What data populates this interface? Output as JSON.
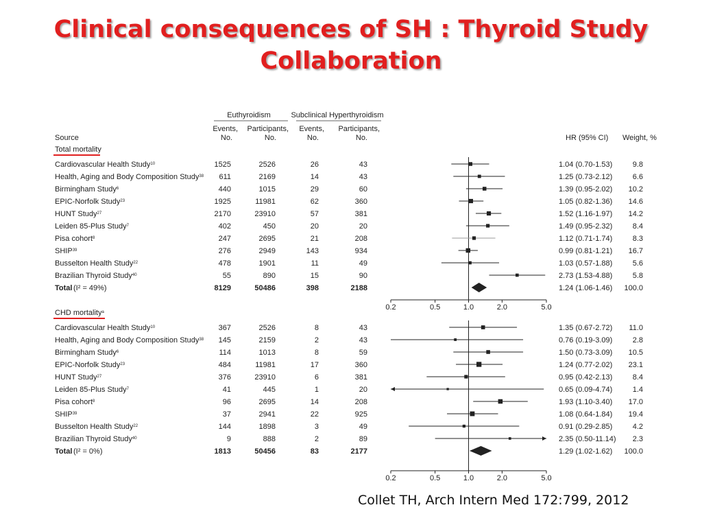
{
  "title": "Clinical consequences of SH : Thyroid Study Collaboration",
  "citation": "Collet TH, Arch Intern Med 172:799, 2012",
  "colors": {
    "title": "#e11f1f",
    "underline": "#e11f1f",
    "text": "#222222",
    "pisa_ci": "#999999"
  },
  "headers": {
    "group_euthyroidism": "Euthyroidism",
    "group_subclinical": "Subclinical Hyperthyroidism",
    "source": "Source",
    "eu_events": [
      "Events,",
      "No."
    ],
    "eu_participants": [
      "Participants,",
      "No."
    ],
    "sh_events": [
      "Events,",
      "No."
    ],
    "sh_participants": [
      "Participants,",
      "No."
    ],
    "hr": "HR (95% CI)",
    "weight": "Weight, %"
  },
  "chart_data": [
    {
      "type": "forest",
      "section_label": "Total mortality",
      "x_scale": "log",
      "xlim": [
        0.2,
        5.0
      ],
      "reference_line": 1.0,
      "ticks": [
        "0.2",
        "0.5",
        "1.0",
        "2.0",
        "5.0"
      ],
      "tick_values": [
        0.2,
        0.5,
        1.0,
        2.0,
        5.0
      ],
      "rows": [
        {
          "source": "Cardiovascular Health Study",
          "ref": "10",
          "eu_events": "1525",
          "eu_participants": "2526",
          "sh_events": "26",
          "sh_participants": "43",
          "hr": 1.04,
          "lo": 0.7,
          "hi": 1.53,
          "hr_text": "1.04 (0.70-1.53)",
          "weight": "9.8"
        },
        {
          "source": "Health, Aging and Body Composition Study",
          "ref": "38",
          "eu_events": "611",
          "eu_participants": "2169",
          "sh_events": "14",
          "sh_participants": "43",
          "hr": 1.25,
          "lo": 0.73,
          "hi": 2.12,
          "hr_text": "1.25 (0.73-2.12)",
          "weight": "6.6"
        },
        {
          "source": "Birmingham Study",
          "ref": "6",
          "eu_events": "440",
          "eu_participants": "1015",
          "sh_events": "29",
          "sh_participants": "60",
          "hr": 1.39,
          "lo": 0.95,
          "hi": 2.02,
          "hr_text": "1.39 (0.95-2.02)",
          "weight": "10.2"
        },
        {
          "source": "EPIC-Norfolk Study",
          "ref": "23",
          "eu_events": "1925",
          "eu_participants": "11981",
          "sh_events": "62",
          "sh_participants": "360",
          "hr": 1.05,
          "lo": 0.82,
          "hi": 1.36,
          "hr_text": "1.05 (0.82-1.36)",
          "weight": "14.6"
        },
        {
          "source": "HUNT Study",
          "ref": "27",
          "eu_events": "2170",
          "eu_participants": "23910",
          "sh_events": "57",
          "sh_participants": "381",
          "hr": 1.52,
          "lo": 1.16,
          "hi": 1.97,
          "hr_text": "1.52 (1.16-1.97)",
          "weight": "14.2"
        },
        {
          "source": "Leiden 85-Plus Study",
          "ref": "7",
          "eu_events": "402",
          "eu_participants": "450",
          "sh_events": "20",
          "sh_participants": "20",
          "hr": 1.49,
          "lo": 0.95,
          "hi": 2.32,
          "hr_text": "1.49 (0.95-2.32)",
          "weight": "8.4"
        },
        {
          "source": "Pisa cohort",
          "ref": "8",
          "eu_events": "247",
          "eu_participants": "2695",
          "sh_events": "21",
          "sh_participants": "208",
          "hr": 1.12,
          "lo": 0.71,
          "hi": 1.74,
          "hr_text": "1.12 (0.71-1.74)",
          "weight": "8.3",
          "gray": true
        },
        {
          "source": "SHIP",
          "ref": "39",
          "eu_events": "276",
          "eu_participants": "2949",
          "sh_events": "143",
          "sh_participants": "934",
          "hr": 0.99,
          "lo": 0.81,
          "hi": 1.21,
          "hr_text": "0.99 (0.81-1.21)",
          "weight": "16.7"
        },
        {
          "source": "Busselton Health Study",
          "ref": "22",
          "eu_events": "478",
          "eu_participants": "1901",
          "sh_events": "11",
          "sh_participants": "49",
          "hr": 1.03,
          "lo": 0.57,
          "hi": 1.88,
          "hr_text": "1.03 (0.57-1.88)",
          "weight": "5.6"
        },
        {
          "source": "Brazilian Thyroid Study",
          "ref": "40",
          "eu_events": "55",
          "eu_participants": "890",
          "sh_events": "15",
          "sh_participants": "90",
          "hr": 2.73,
          "lo": 1.53,
          "hi": 4.88,
          "hr_text": "2.73 (1.53-4.88)",
          "weight": "5.8"
        }
      ],
      "total": {
        "label": "Total",
        "het": "(I² = 49%)",
        "eu_events": "8129",
        "eu_participants": "50486",
        "sh_events": "398",
        "sh_participants": "2188",
        "hr": 1.24,
        "lo": 1.06,
        "hi": 1.46,
        "hr_text": "1.24 (1.06-1.46)",
        "weight": "100.0"
      }
    },
    {
      "type": "forest",
      "section_label": "CHD mortality",
      "section_ref": "a",
      "x_scale": "log",
      "xlim": [
        0.2,
        5.0
      ],
      "reference_line": 1.0,
      "ticks": [
        "0.2",
        "0.5",
        "1.0",
        "2.0",
        "5.0"
      ],
      "tick_values": [
        0.2,
        0.5,
        1.0,
        2.0,
        5.0
      ],
      "rows": [
        {
          "source": "Cardiovascular Health Study",
          "ref": "10",
          "eu_events": "367",
          "eu_participants": "2526",
          "sh_events": "8",
          "sh_participants": "43",
          "hr": 1.35,
          "lo": 0.67,
          "hi": 2.72,
          "hr_text": "1.35 (0.67-2.72)",
          "weight": "11.0"
        },
        {
          "source": "Health, Aging and Body Composition Study",
          "ref": "38",
          "eu_events": "145",
          "eu_participants": "2159",
          "sh_events": "2",
          "sh_participants": "43",
          "hr": 0.76,
          "lo": 0.19,
          "hi": 3.09,
          "hr_text": "0.76 (0.19-3.09)",
          "weight": "2.8"
        },
        {
          "source": "Birmingham Study",
          "ref": "6",
          "eu_events": "114",
          "eu_participants": "1013",
          "sh_events": "8",
          "sh_participants": "59",
          "hr": 1.5,
          "lo": 0.73,
          "hi": 3.09,
          "hr_text": "1.50 (0.73-3.09)",
          "weight": "10.5"
        },
        {
          "source": "EPIC-Norfolk Study",
          "ref": "23",
          "eu_events": "484",
          "eu_participants": "11981",
          "sh_events": "17",
          "sh_participants": "360",
          "hr": 1.24,
          "lo": 0.77,
          "hi": 2.02,
          "hr_text": "1.24 (0.77-2.02)",
          "weight": "23.1"
        },
        {
          "source": "HUNT Study",
          "ref": "27",
          "eu_events": "376",
          "eu_participants": "23910",
          "sh_events": "6",
          "sh_participants": "381",
          "hr": 0.95,
          "lo": 0.42,
          "hi": 2.13,
          "hr_text": "0.95 (0.42-2.13)",
          "weight": "8.4"
        },
        {
          "source": "Leiden 85-Plus Study",
          "ref": "7",
          "eu_events": "41",
          "eu_participants": "445",
          "sh_events": "1",
          "sh_participants": "20",
          "hr": 0.65,
          "lo": 0.09,
          "hi": 4.74,
          "hr_text": "0.65 (0.09-4.74)",
          "weight": "1.4",
          "arrow_left": true
        },
        {
          "source": "Pisa cohort",
          "ref": "8",
          "eu_events": "96",
          "eu_participants": "2695",
          "sh_events": "14",
          "sh_participants": "208",
          "hr": 1.93,
          "lo": 1.1,
          "hi": 3.4,
          "hr_text": "1.93 (1.10-3.40)",
          "weight": "17.0"
        },
        {
          "source": "SHIP",
          "ref": "39",
          "eu_events": "37",
          "eu_participants": "2941",
          "sh_events": "22",
          "sh_participants": "925",
          "hr": 1.08,
          "lo": 0.64,
          "hi": 1.84,
          "hr_text": "1.08 (0.64-1.84)",
          "weight": "19.4"
        },
        {
          "source": "Busselton Health Study",
          "ref": "22",
          "eu_events": "144",
          "eu_participants": "1898",
          "sh_events": "3",
          "sh_participants": "49",
          "hr": 0.91,
          "lo": 0.29,
          "hi": 2.85,
          "hr_text": "0.91 (0.29-2.85)",
          "weight": "4.2"
        },
        {
          "source": "Brazilian Thyroid Study",
          "ref": "40",
          "eu_events": "9",
          "eu_participants": "888",
          "sh_events": "2",
          "sh_participants": "89",
          "hr": 2.35,
          "lo": 0.5,
          "hi": 11.14,
          "hr_text": "2.35 (0.50-11.14)",
          "weight": "2.3",
          "arrow_right": true
        }
      ],
      "total": {
        "label": "Total",
        "het": "(I² = 0%)",
        "eu_events": "1813",
        "eu_participants": "50456",
        "sh_events": "83",
        "sh_participants": "2177",
        "hr": 1.29,
        "lo": 1.02,
        "hi": 1.62,
        "hr_text": "1.29 (1.02-1.62)",
        "weight": "100.0"
      }
    }
  ]
}
